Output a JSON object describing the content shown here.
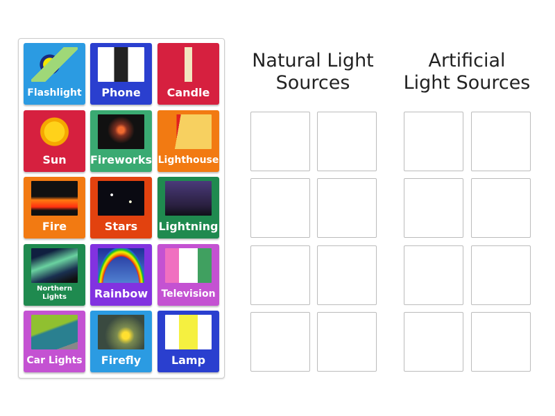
{
  "tiles": [
    {
      "label": "Flashlight",
      "color": "#2b9be2",
      "icon": "flashlight-image"
    },
    {
      "label": "Phone",
      "color": "#2a3fcf",
      "icon": "phone-image"
    },
    {
      "label": "Candle",
      "color": "#d6203f",
      "icon": "candle-image"
    },
    {
      "label": "Sun",
      "color": "#d6203f",
      "icon": "sun-image"
    },
    {
      "label": "Fireworks",
      "color": "#3aaa72",
      "icon": "fireworks-image"
    },
    {
      "label": "Lighthouse",
      "color": "#f27a12",
      "icon": "lighthouse-image"
    },
    {
      "label": "Fire",
      "color": "#f27a12",
      "icon": "fire-image"
    },
    {
      "label": "Stars",
      "color": "#e2420f",
      "icon": "stars-image"
    },
    {
      "label": "Lightning",
      "color": "#1f8a4f",
      "icon": "lightning-image"
    },
    {
      "label": "Northern Lights",
      "color": "#1f8a4f",
      "icon": "northern-lights-image"
    },
    {
      "label": "Rainbow",
      "color": "#8232e0",
      "icon": "rainbow-image"
    },
    {
      "label": "Television",
      "color": "#c452d2",
      "icon": "television-image"
    },
    {
      "label": "Car Lights",
      "color": "#c452d2",
      "icon": "car-lights-image"
    },
    {
      "label": "Firefly",
      "color": "#2b9be2",
      "icon": "firefly-image"
    },
    {
      "label": "Lamp",
      "color": "#2a3fcf",
      "icon": "lamp-image"
    }
  ],
  "groups": [
    {
      "title_line1": "Natural Light",
      "title_line2": "Sources"
    },
    {
      "title_line1": "Artificial",
      "title_line2": "Light Sources"
    }
  ]
}
